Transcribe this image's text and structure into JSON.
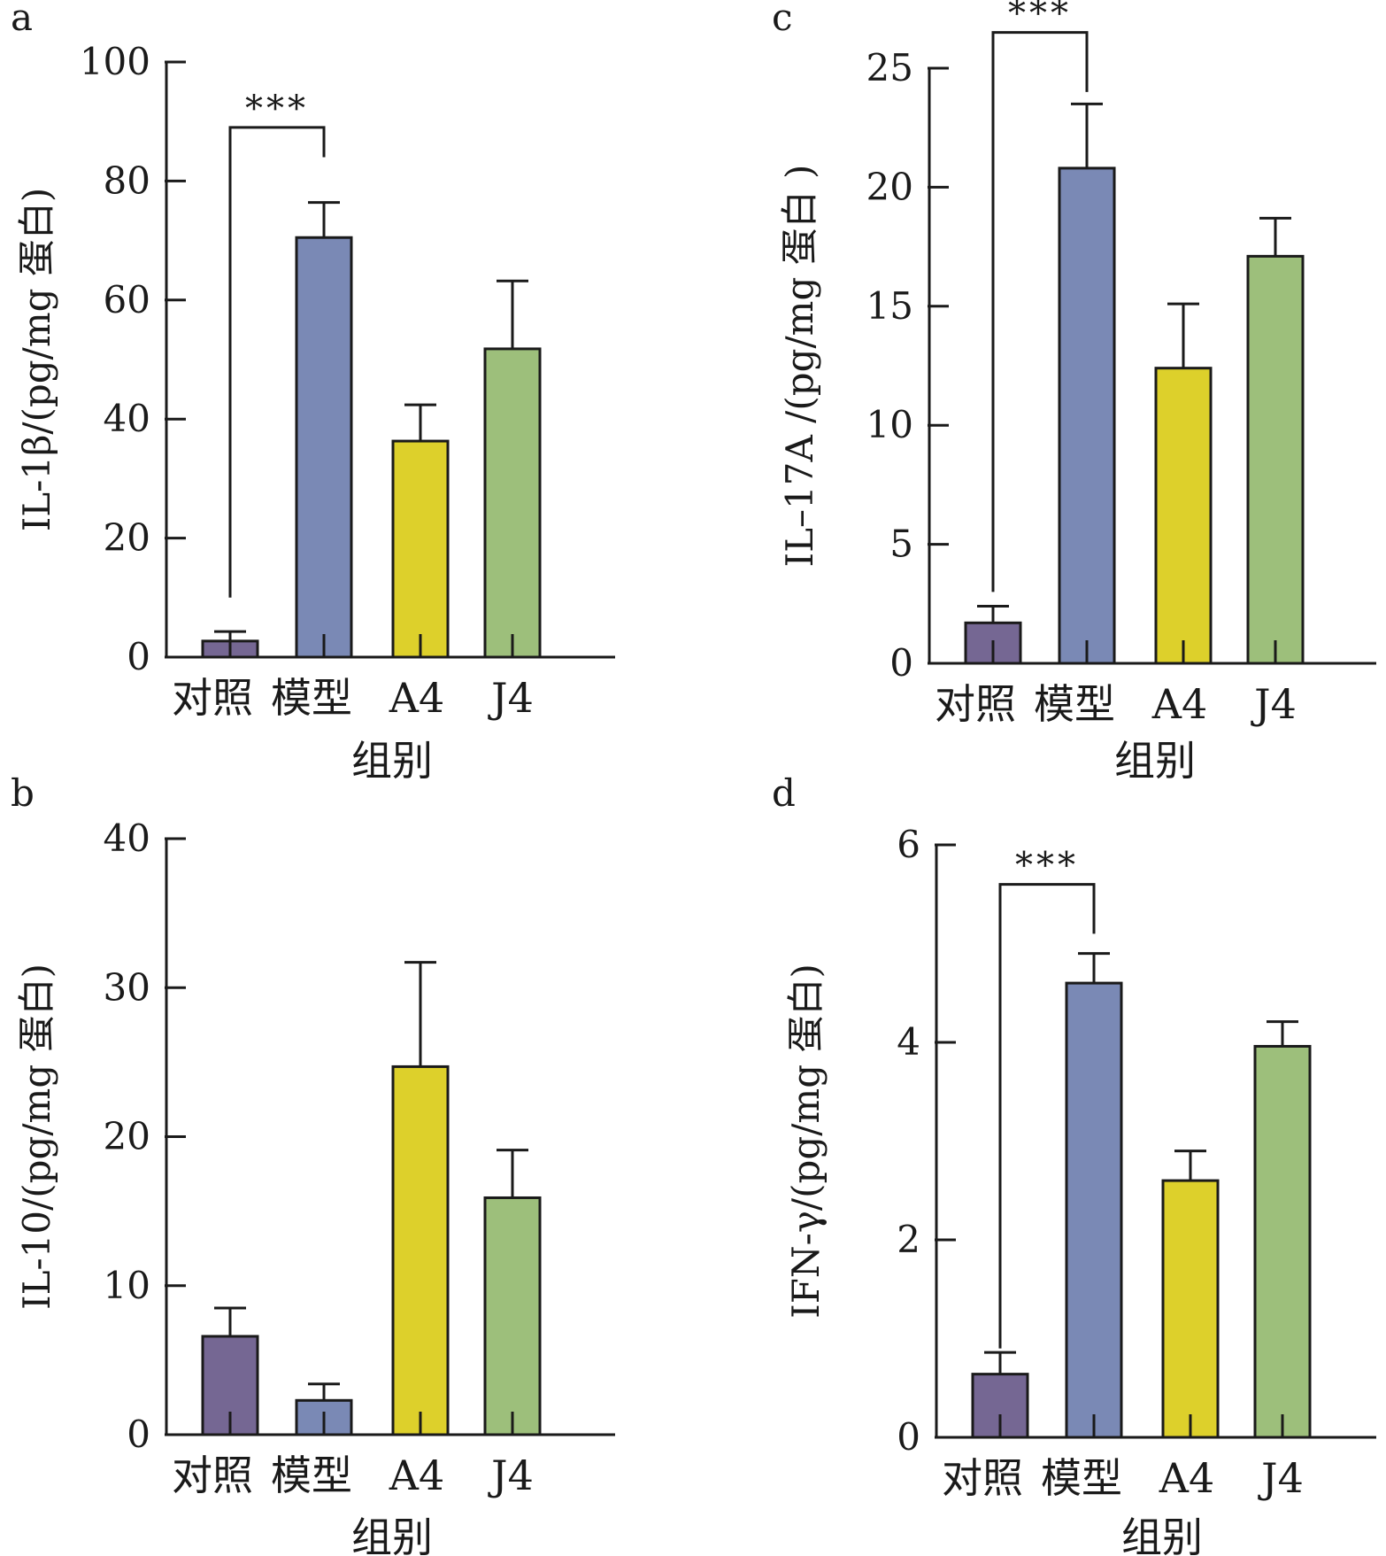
{
  "figure": {
    "panels_order": [
      "a",
      "b",
      "c",
      "d"
    ]
  },
  "chart_data": [
    {
      "panel_label": "a",
      "type": "bar",
      "categories": [
        "对照",
        "模型",
        "A4",
        "J4"
      ],
      "xlabel": "组别",
      "ylabel": "IL-1β/(pg/mg 蛋白)",
      "ylim": [
        0,
        100
      ],
      "yticks": [
        "0",
        "20",
        "40",
        "60",
        "80",
        "100"
      ],
      "series": [
        {
          "values": [
            2.7,
            70.5,
            36.3,
            51.8
          ],
          "errors": [
            1.6,
            5.9,
            6.1,
            11.4
          ]
        }
      ],
      "colors": [
        "#756793",
        "#7a89b5",
        "#ddd02b",
        "#9dbf7b"
      ],
      "significance": {
        "from": 0,
        "to": 1,
        "text": "***",
        "level": 89,
        "left_drop": 10,
        "right_drop": 84
      },
      "grid": false,
      "legend": "none"
    },
    {
      "panel_label": "b",
      "type": "bar",
      "categories": [
        "对照",
        "模型",
        "A4",
        "J4"
      ],
      "xlabel": "组别",
      "ylabel": "IL-10/(pg/mg 蛋白)",
      "ylim": [
        0,
        40
      ],
      "yticks": [
        "0",
        "10",
        "20",
        "30",
        "40"
      ],
      "series": [
        {
          "values": [
            6.6,
            2.3,
            24.7,
            15.9
          ],
          "errors": [
            1.9,
            1.1,
            7.0,
            3.2
          ]
        }
      ],
      "colors": [
        "#756793",
        "#7a89b5",
        "#ddd02b",
        "#9dbf7b"
      ],
      "significance": null,
      "grid": false,
      "legend": "none"
    },
    {
      "panel_label": "c",
      "type": "bar",
      "categories": [
        "对照",
        "模型",
        "A4",
        "J4"
      ],
      "xlabel": "组别",
      "ylabel": "IL–17A /(pg/mg 蛋白 )",
      "ylim": [
        0,
        25
      ],
      "yticks": [
        "0",
        "5",
        "10",
        "15",
        "20",
        "25"
      ],
      "series": [
        {
          "values": [
            1.7,
            20.8,
            12.4,
            17.1
          ],
          "errors": [
            0.7,
            2.7,
            2.7,
            1.6
          ]
        }
      ],
      "colors": [
        "#756793",
        "#7a89b5",
        "#ddd02b",
        "#9dbf7b"
      ],
      "significance": {
        "from": 0,
        "to": 1,
        "text": "***",
        "level": 26.5,
        "left_drop": 3.0,
        "right_drop": 24.0
      },
      "grid": false,
      "legend": "none"
    },
    {
      "panel_label": "d",
      "type": "bar",
      "categories": [
        "对照",
        "模型",
        "A4",
        "J4"
      ],
      "xlabel": "组别",
      "ylabel": "IFN-γ/(pg/mg 蛋白)",
      "ylim": [
        0,
        6
      ],
      "yticks": [
        "0",
        "2",
        "4",
        "6"
      ],
      "series": [
        {
          "values": [
            0.64,
            4.6,
            2.6,
            3.96
          ],
          "errors": [
            0.22,
            0.3,
            0.3,
            0.25
          ]
        }
      ],
      "colors": [
        "#756793",
        "#7a89b5",
        "#ddd02b",
        "#9dbf7b"
      ],
      "significance": {
        "from": 0,
        "to": 1,
        "text": "***",
        "level": 5.6,
        "left_drop": 0.9,
        "right_drop": 5.1
      },
      "grid": false,
      "legend": "none"
    }
  ]
}
